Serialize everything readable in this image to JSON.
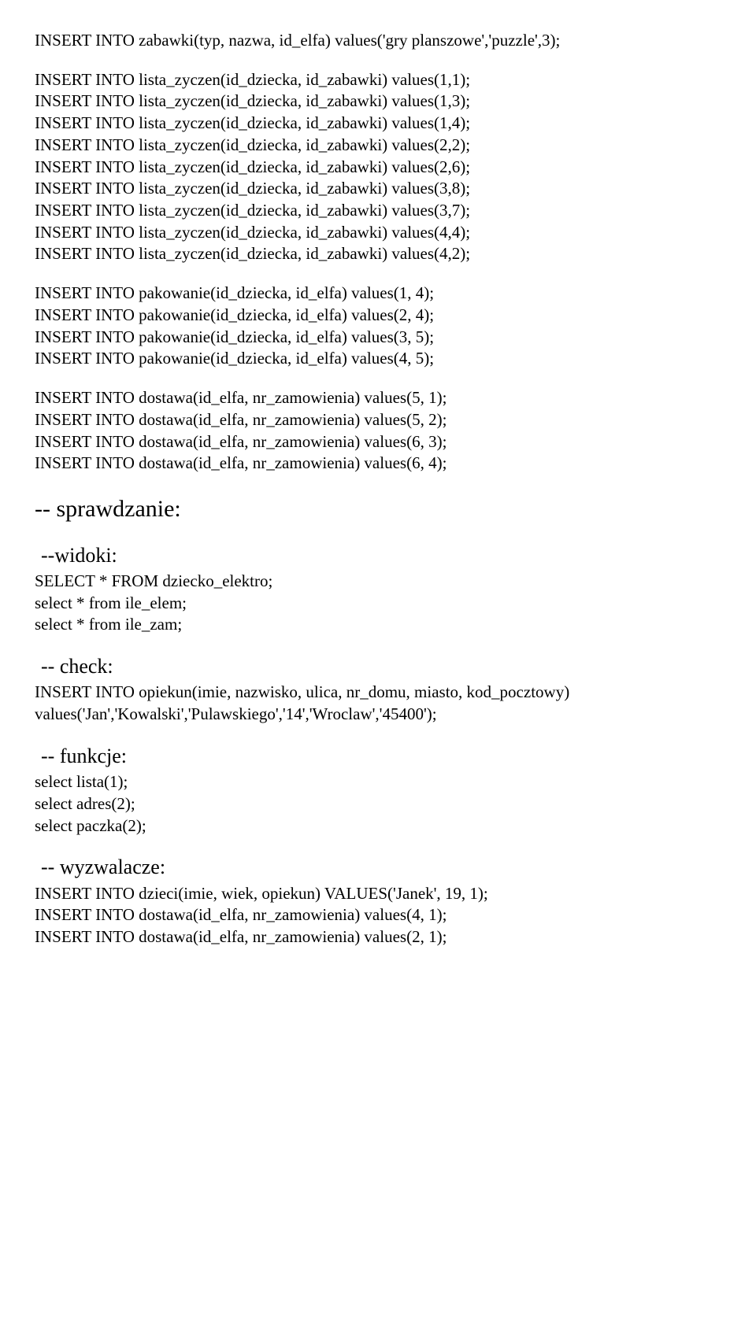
{
  "blocks": {
    "b0": [
      "INSERT INTO zabawki(typ, nazwa, id_elfa) values('gry planszowe','puzzle',3);"
    ],
    "b1": [
      "INSERT INTO lista_zyczen(id_dziecka, id_zabawki) values(1,1);",
      "INSERT INTO lista_zyczen(id_dziecka, id_zabawki) values(1,3);",
      "INSERT INTO lista_zyczen(id_dziecka, id_zabawki) values(1,4);",
      "INSERT INTO lista_zyczen(id_dziecka, id_zabawki) values(2,2);",
      "INSERT INTO lista_zyczen(id_dziecka, id_zabawki) values(2,6);",
      "INSERT INTO lista_zyczen(id_dziecka, id_zabawki) values(3,8);",
      "INSERT INTO lista_zyczen(id_dziecka, id_zabawki) values(3,7);",
      "INSERT INTO lista_zyczen(id_dziecka, id_zabawki) values(4,4);",
      "INSERT INTO lista_zyczen(id_dziecka, id_zabawki) values(4,2);"
    ],
    "b2": [
      "INSERT INTO pakowanie(id_dziecka, id_elfa) values(1, 4);",
      "INSERT INTO pakowanie(id_dziecka, id_elfa) values(2, 4);",
      "INSERT INTO pakowanie(id_dziecka, id_elfa) values(3, 5);",
      "INSERT INTO pakowanie(id_dziecka, id_elfa) values(4, 5);"
    ],
    "b3": [
      "INSERT INTO dostawa(id_elfa, nr_zamowienia) values(5, 1);",
      "INSERT INTO dostawa(id_elfa, nr_zamowienia) values(5, 2);",
      "INSERT INTO dostawa(id_elfa, nr_zamowienia) values(6, 3);",
      "INSERT INTO dostawa(id_elfa, nr_zamowienia) values(6, 4);"
    ],
    "h_sprawdzanie": "-- sprawdzanie:",
    "h_widoki": "--widoki:",
    "b_widoki": [
      "SELECT * FROM dziecko_elektro;",
      "select * from ile_elem;",
      "select * from ile_zam;"
    ],
    "h_check": "-- check:",
    "b_check": [
      "INSERT INTO opiekun(imie, nazwisko, ulica, nr_domu, miasto, kod_pocztowy)",
      "values('Jan','Kowalski','Pulawskiego','14','Wroclaw','45400');"
    ],
    "h_funkcje": "-- funkcje:",
    "b_funkcje": [
      "select lista(1);",
      "select adres(2);",
      "select paczka(2);"
    ],
    "h_wyzwalacze": "-- wyzwalacze:",
    "b_wyzwalacze": [
      "INSERT INTO dzieci(imie, wiek, opiekun) VALUES('Janek', 19, 1);",
      "INSERT INTO dostawa(id_elfa, nr_zamowienia) values(4, 1);",
      "INSERT INTO dostawa(id_elfa, nr_zamowienia) values(2, 1);"
    ]
  }
}
